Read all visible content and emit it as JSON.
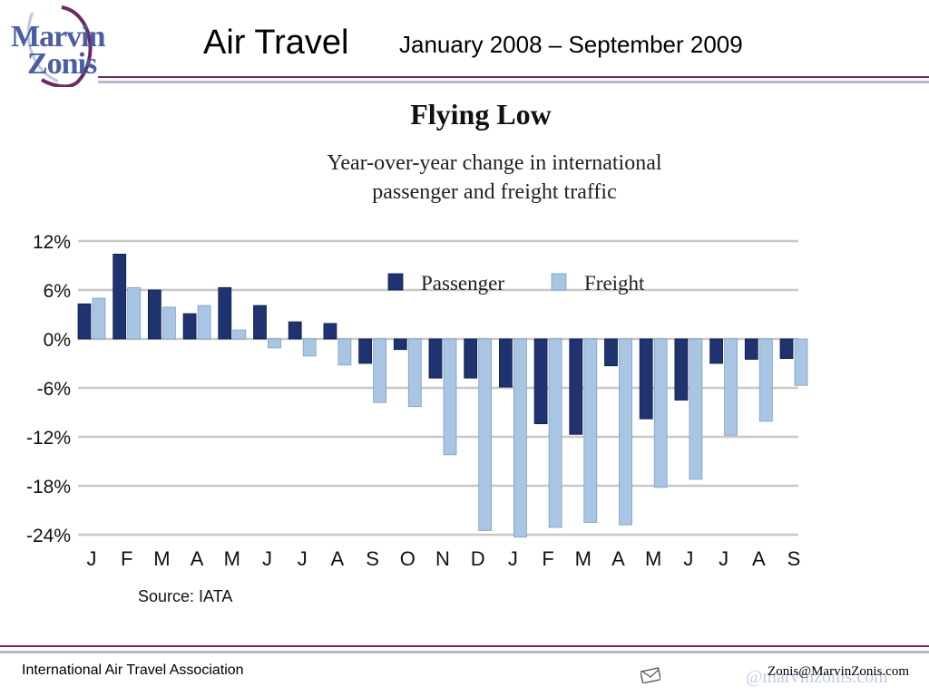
{
  "logo": {
    "line1": "Marvin",
    "line2": "Zonis"
  },
  "header": {
    "title": "Air Travel",
    "subtitle": "January 2008 – September 2009"
  },
  "footer": {
    "left": "International Air Travel Association",
    "right": "Zonis@MarvinZonis.com",
    "web": "@marvinzonis.com"
  },
  "colors": {
    "passenger": "#1e3370",
    "freight": "#a9c5e4",
    "grid": "#c8c8c8",
    "accent_rule": "#7b2a5e"
  },
  "chart_data": {
    "type": "bar",
    "title": "Flying Low",
    "subtitle_lines": [
      "Year-over-year change in international",
      "passenger and freight traffic"
    ],
    "source": "Source: IATA",
    "categories": [
      "J",
      "F",
      "M",
      "A",
      "M",
      "J",
      "J",
      "A",
      "S",
      "O",
      "N",
      "D",
      "J",
      "F",
      "M",
      "A",
      "M",
      "J",
      "J",
      "A",
      "S"
    ],
    "series": [
      {
        "name": "Passenger",
        "values": [
          4.3,
          10.4,
          6.0,
          3.1,
          6.3,
          4.1,
          2.1,
          1.9,
          -3.0,
          -1.3,
          -4.8,
          -4.8,
          -5.9,
          -10.4,
          -11.7,
          -3.3,
          -9.8,
          -7.5,
          -3.0,
          -2.5,
          -2.4
        ]
      },
      {
        "name": "Freight",
        "values": [
          5.0,
          6.3,
          3.9,
          4.1,
          1.1,
          -1.1,
          -2.1,
          -3.2,
          -7.8,
          -8.3,
          -14.2,
          -23.5,
          -24.3,
          -23.1,
          -22.5,
          -22.8,
          -18.2,
          -17.2,
          -11.8,
          -10.1,
          -5.7
        ]
      }
    ],
    "yticks": [
      "12%",
      "6%",
      "0%",
      "-6%",
      "-12%",
      "-18%",
      "-24%"
    ],
    "ylim": [
      -24,
      12
    ],
    "grid": true,
    "legend_position": "top-right"
  }
}
